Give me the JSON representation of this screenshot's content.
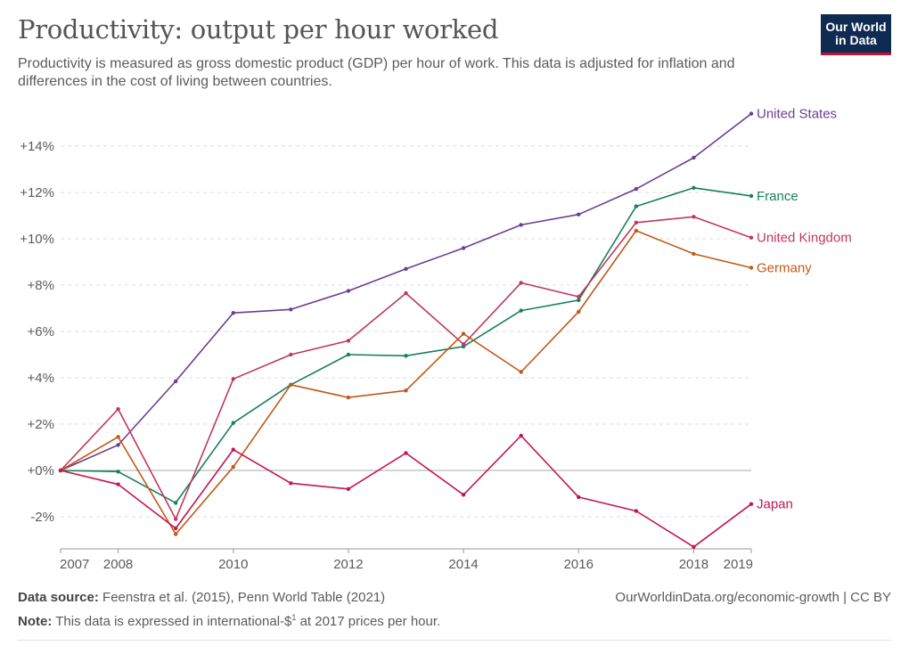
{
  "header": {
    "title": "Productivity: output per hour worked",
    "subtitle": "Productivity is measured as gross domestic product (GDP) per hour of work. This data is adjusted for inflation and differences in the cost of living between countries.",
    "logo_line1": "Our World",
    "logo_line2": "in Data",
    "logo_color": "#0f2b52",
    "logo_accent": "#c8102e"
  },
  "footer": {
    "source_label": "Data source:",
    "source_text": "Feenstra et al. (2015), Penn World Table (2021)",
    "note_label": "Note:",
    "note_text_before": "This data is expressed in international-$",
    "note_sup": "1",
    "note_text_after": " at 2017 prices per hour.",
    "credit": "OurWorldinData.org/economic-growth | CC BY"
  },
  "chart_data": {
    "type": "line",
    "title": "Productivity: output per hour worked",
    "x": [
      2007,
      2008,
      2009,
      2010,
      2011,
      2012,
      2013,
      2014,
      2015,
      2016,
      2017,
      2018,
      2019
    ],
    "xlim": [
      2007,
      2019
    ],
    "ylim": [
      -3.2,
      15.5
    ],
    "x_ticks": [
      2007,
      2008,
      2010,
      2012,
      2014,
      2016,
      2018,
      2019
    ],
    "y_ticks": [
      -2,
      0,
      2,
      4,
      6,
      8,
      10,
      12,
      14
    ],
    "y_tick_labels": [
      "-2%",
      "+0%",
      "+2%",
      "+4%",
      "+6%",
      "+8%",
      "+10%",
      "+12%",
      "+14%"
    ],
    "grid": "horizontal dashed",
    "legend": "end-of-line labels, right",
    "series": [
      {
        "name": "United States",
        "color": "#6d3e91",
        "values": [
          0,
          1.1,
          3.85,
          6.8,
          6.95,
          7.75,
          8.7,
          9.6,
          10.6,
          11.05,
          12.15,
          13.5,
          15.4
        ]
      },
      {
        "name": "France",
        "color": "#18805e",
        "values": [
          0,
          -0.05,
          -1.4,
          2.05,
          3.7,
          5.0,
          4.95,
          5.35,
          6.9,
          7.35,
          11.4,
          12.2,
          11.85
        ]
      },
      {
        "name": "United Kingdom",
        "color": "#c0385c",
        "values": [
          0,
          2.65,
          -2.1,
          3.95,
          5.0,
          5.6,
          7.65,
          5.45,
          8.1,
          7.5,
          10.7,
          10.95,
          10.05
        ]
      },
      {
        "name": "Germany",
        "color": "#c05917",
        "values": [
          0,
          1.45,
          -2.75,
          0.15,
          3.7,
          3.15,
          3.45,
          5.9,
          4.25,
          6.85,
          10.35,
          9.35,
          8.75
        ]
      },
      {
        "name": "Japan",
        "color": "#c4154f",
        "values": [
          0,
          -0.6,
          -2.5,
          0.9,
          -0.55,
          -0.8,
          0.75,
          -1.05,
          1.5,
          -1.15,
          -1.75,
          -3.3,
          -1.45
        ]
      }
    ]
  }
}
